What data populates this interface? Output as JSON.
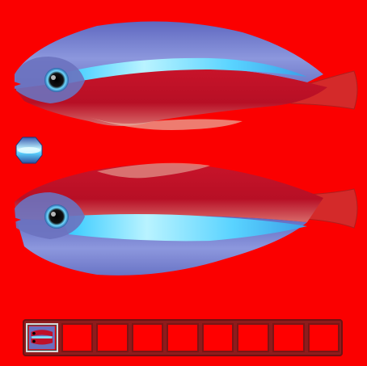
{
  "scene": {
    "background_color": "#fb0000",
    "subject": "neon tetra fish",
    "fish": [
      {
        "id": "top",
        "orientation": "facing-left"
      },
      {
        "id": "bottom",
        "orientation": "facing-left"
      }
    ]
  },
  "hotbar": {
    "slot_count": 9,
    "selected_index": 0,
    "slots": [
      {
        "icon": "fish-item-icon",
        "count": ""
      },
      {
        "icon": "empty-slot",
        "count": ""
      },
      {
        "icon": "empty-slot",
        "count": ""
      },
      {
        "icon": "empty-slot",
        "count": ""
      },
      {
        "icon": "empty-slot",
        "count": ""
      },
      {
        "icon": "empty-slot",
        "count": ""
      },
      {
        "icon": "empty-slot",
        "count": ""
      },
      {
        "icon": "empty-slot",
        "count": ""
      },
      {
        "icon": "empty-slot",
        "count": ""
      }
    ]
  },
  "colors": {
    "hotbar_frame": "#8e1c1c",
    "slot_fill": "#ff0000",
    "neon_stripe": "#58d3ff",
    "body_red": "#c0081c",
    "back_blue": "#6f79c8"
  }
}
